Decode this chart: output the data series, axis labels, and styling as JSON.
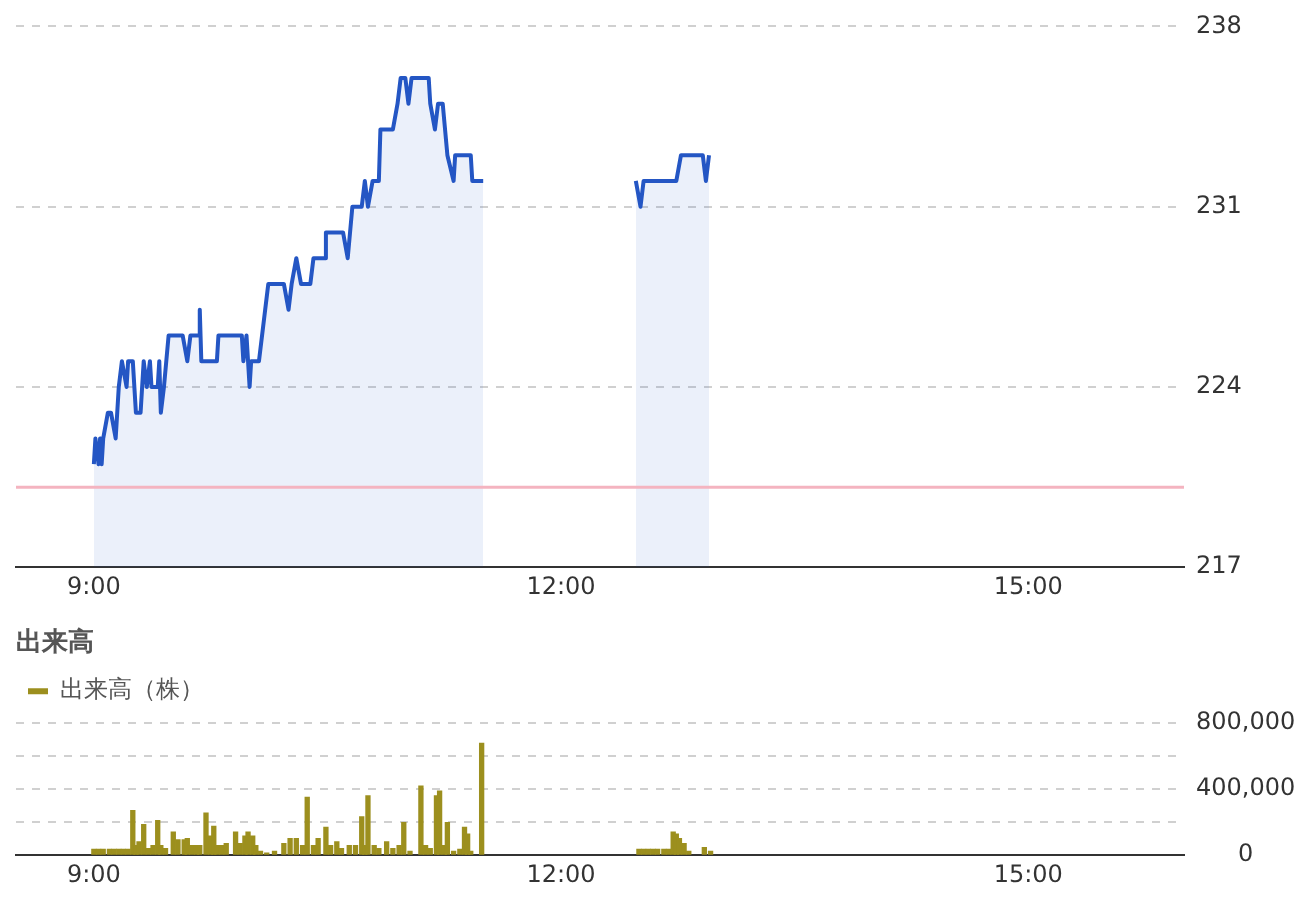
{
  "chart_data": [
    {
      "type": "area",
      "color": "#2456c4",
      "x": [
        9.0,
        9.01,
        9.03,
        9.04,
        9.05,
        9.06,
        9.09,
        9.11,
        9.14,
        9.16,
        9.18,
        9.21,
        9.22,
        9.25,
        9.27,
        9.3,
        9.32,
        9.34,
        9.36,
        9.37,
        9.41,
        9.42,
        9.43,
        9.45,
        9.48,
        9.57,
        9.6,
        9.62,
        9.67,
        9.68,
        9.69,
        9.79,
        9.8,
        9.84,
        9.95,
        9.96,
        9.98,
        10.0,
        10.01,
        10.06,
        10.1,
        10.12,
        10.22,
        10.25,
        10.27,
        10.3,
        10.33,
        10.39,
        10.41,
        10.48,
        10.49,
        10.6,
        10.63,
        10.66,
        10.72,
        10.74,
        10.76,
        10.79,
        10.83,
        10.84,
        10.92,
        10.95,
        10.97,
        11.0,
        11.02,
        11.04,
        11.15,
        11.16,
        11.19,
        11.21,
        11.24,
        11.27,
        11.31,
        11.32,
        11.42,
        11.43,
        11.5,
        12.0,
        12.48,
        12.51,
        12.53,
        12.74,
        12.77,
        12.91,
        12.93,
        12.95
      ],
      "values": [
        221,
        222,
        221,
        222,
        221,
        222,
        223,
        223,
        222,
        224,
        225,
        224,
        225,
        225,
        223,
        223,
        225,
        224,
        225,
        224,
        224,
        225,
        223,
        224,
        226,
        226,
        225,
        226,
        226,
        227,
        225,
        225,
        226,
        226,
        226,
        225,
        226,
        224,
        225,
        225,
        227,
        228,
        228,
        227,
        228,
        229,
        228,
        228,
        229,
        229,
        230,
        230,
        229,
        231,
        231,
        232,
        231,
        232,
        232,
        234,
        234,
        235,
        236,
        236,
        235,
        236,
        236,
        235,
        234,
        235,
        235,
        233,
        232,
        233,
        233,
        232,
        232,
        null,
        232,
        231,
        232,
        232,
        233,
        233,
        232,
        233
      ],
      "xlim": [
        8.5,
        16
      ],
      "xticks": [
        {
          "value": 9,
          "label": "9:00"
        },
        {
          "value": 12,
          "label": "12:00"
        },
        {
          "value": 15,
          "label": "15:00"
        }
      ],
      "ylim": [
        217,
        238
      ],
      "yticks": [
        217,
        224,
        231,
        238
      ],
      "grid": "y",
      "ref_lines": [
        {
          "axis": "y",
          "value": 220.1,
          "color": "#f4b4c0"
        }
      ]
    },
    {
      "type": "bar",
      "title": "出来高",
      "legend": "top left",
      "series": [
        {
          "name": "出来高（株）",
          "color": "#9c8f1e",
          "x": [
            9.0,
            9.03,
            9.06,
            9.1,
            9.13,
            9.16,
            9.19,
            9.22,
            9.25,
            9.27,
            9.29,
            9.32,
            9.35,
            9.38,
            9.41,
            9.43,
            9.46,
            9.51,
            9.54,
            9.58,
            9.6,
            9.63,
            9.66,
            9.68,
            9.72,
            9.75,
            9.77,
            9.79,
            9.82,
            9.85,
            9.91,
            9.94,
            9.97,
            9.99,
            10.02,
            10.04,
            10.07,
            10.11,
            10.16,
            10.22,
            10.26,
            10.3,
            10.34,
            10.37,
            10.41,
            10.44,
            10.49,
            10.52,
            10.56,
            10.59,
            10.64,
            10.68,
            10.72,
            10.74,
            10.76,
            10.8,
            10.83,
            10.88,
            10.92,
            10.96,
            10.99,
            11.03,
            11.1,
            11.13,
            11.16,
            11.2,
            11.22,
            11.25,
            11.27,
            11.31,
            11.35,
            11.38,
            11.4,
            11.42,
            11.49,
            12.5,
            12.53,
            12.56,
            12.59,
            12.62,
            12.66,
            12.69,
            12.72,
            12.74,
            12.76,
            12.79,
            12.82,
            12.92,
            12.96
          ],
          "values": [
            35000,
            35000,
            35000,
            35000,
            35000,
            35000,
            35000,
            35000,
            270000,
            58000,
            80000,
            185000,
            40000,
            58000,
            210000,
            58000,
            40000,
            140000,
            93000,
            93000,
            100000,
            58000,
            58000,
            58000,
            255000,
            116000,
            175000,
            58000,
            58000,
            70000,
            140000,
            70000,
            116000,
            140000,
            116000,
            58000,
            23000,
            12000,
            23000,
            70000,
            100000,
            100000,
            58000,
            350000,
            58000,
            100000,
            168000,
            58000,
            80000,
            40000,
            58000,
            58000,
            232000,
            58000,
            360000,
            58000,
            40000,
            80000,
            40000,
            58000,
            197000,
            23000,
            418000,
            58000,
            40000,
            360000,
            388000,
            58000,
            197000,
            23000,
            35000,
            168000,
            128000,
            23000,
            678000,
            35000,
            35000,
            35000,
            35000,
            35000,
            35000,
            35000,
            140000,
            128000,
            100000,
            70000,
            23000,
            46000,
            23000
          ]
        }
      ],
      "xlim": [
        8.5,
        16
      ],
      "xticks": [
        {
          "value": 9,
          "label": "9:00"
        },
        {
          "value": 12,
          "label": "12:00"
        },
        {
          "value": 15,
          "label": "15:00"
        }
      ],
      "ylim": [
        0,
        800000
      ],
      "yticks": [
        {
          "value": 0,
          "label": "0"
        },
        {
          "value": 200000,
          "label": null
        },
        {
          "value": 400000,
          "label": "400,000"
        },
        {
          "value": 600000,
          "label": null
        },
        {
          "value": 800000,
          "label": "800,000"
        }
      ],
      "grid": "y"
    }
  ]
}
